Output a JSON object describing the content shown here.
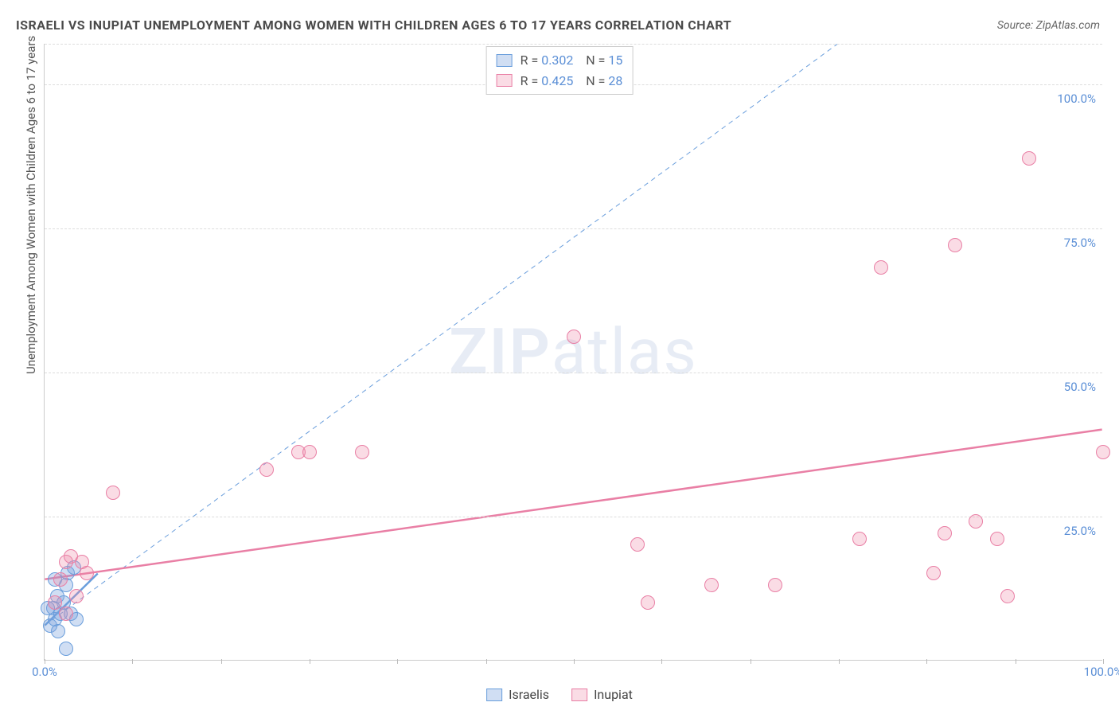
{
  "title": "ISRAELI VS INUPIAT UNEMPLOYMENT AMONG WOMEN WITH CHILDREN AGES 6 TO 17 YEARS CORRELATION CHART",
  "title_fontsize": 16,
  "source": "Source: ZipAtlas.com",
  "ylabel": "Unemployment Among Women with Children Ages 6 to 17 years",
  "watermark": "ZIPatlas",
  "chart": {
    "type": "scatter",
    "background_color": "#ffffff",
    "grid_color": "#dddddd",
    "axis_color": "#cccccc",
    "xlim": [
      0,
      100
    ],
    "ylim": [
      0,
      107
    ],
    "ytick_values": [
      25,
      50,
      75,
      100
    ],
    "ytick_labels": [
      "25.0%",
      "50.0%",
      "75.0%",
      "100.0%"
    ],
    "xtick_positions": [
      0,
      8.3,
      16.7,
      25,
      33.3,
      41.7,
      50,
      58.3,
      66.7,
      75,
      83.3,
      91.7,
      100
    ],
    "xaxis_endpoint_labels": [
      "0.0%",
      "100.0%"
    ],
    "tick_label_color": "#5b8fd6",
    "marker_radius": 9,
    "marker_stroke_width": 1.5,
    "series": [
      {
        "name": "Israelis",
        "fill": "rgba(120,160,220,0.35)",
        "stroke": "#6a9edc",
        "R": "0.302",
        "N": "15",
        "regression": {
          "x1": 0,
          "y1": 6,
          "x2": 5,
          "y2": 15,
          "width": 2.5,
          "dash": "none"
        },
        "identity_line": {
          "x1": 0,
          "y1": 6,
          "x2": 75,
          "y2": 107,
          "color": "#6a9edc",
          "width": 1,
          "dash": "6 5"
        },
        "points": [
          [
            0.5,
            6
          ],
          [
            0.8,
            9
          ],
          [
            1.0,
            7
          ],
          [
            1.2,
            11
          ],
          [
            1.5,
            8
          ],
          [
            1.3,
            5
          ],
          [
            1.8,
            10
          ],
          [
            2.0,
            13
          ],
          [
            2.2,
            15
          ],
          [
            2.5,
            8
          ],
          [
            2.0,
            2
          ],
          [
            2.8,
            16
          ],
          [
            1.0,
            14
          ],
          [
            0.3,
            9
          ],
          [
            3.0,
            7
          ]
        ]
      },
      {
        "name": "Inupiat",
        "fill": "rgba(240,140,170,0.30)",
        "stroke": "#e97fa5",
        "R": "0.425",
        "N": "28",
        "regression": {
          "x1": 0,
          "y1": 14,
          "x2": 100,
          "y2": 40,
          "width": 2.5,
          "dash": "none"
        },
        "points": [
          [
            1.0,
            10
          ],
          [
            1.5,
            14
          ],
          [
            2.0,
            17
          ],
          [
            2.5,
            18
          ],
          [
            3.5,
            17
          ],
          [
            3.0,
            11
          ],
          [
            2.0,
            8
          ],
          [
            4.0,
            15
          ],
          [
            6.5,
            29
          ],
          [
            21,
            33
          ],
          [
            24,
            36
          ],
          [
            25,
            36
          ],
          [
            30,
            36
          ],
          [
            50,
            56
          ],
          [
            56,
            20
          ],
          [
            57,
            10
          ],
          [
            63,
            13
          ],
          [
            69,
            13
          ],
          [
            77,
            21
          ],
          [
            79,
            68
          ],
          [
            84,
            15
          ],
          [
            85,
            22
          ],
          [
            86,
            72
          ],
          [
            88,
            24
          ],
          [
            90,
            21
          ],
          [
            91,
            11
          ],
          [
            93,
            87
          ],
          [
            100,
            36
          ]
        ]
      }
    ],
    "legend_top": {
      "r_label": "R =",
      "n_label": "N =",
      "label_color": "#555555",
      "value_color": "#5b8fd6"
    },
    "legend_bottom": {
      "items": [
        "Israelis",
        "Inupiat"
      ]
    }
  }
}
